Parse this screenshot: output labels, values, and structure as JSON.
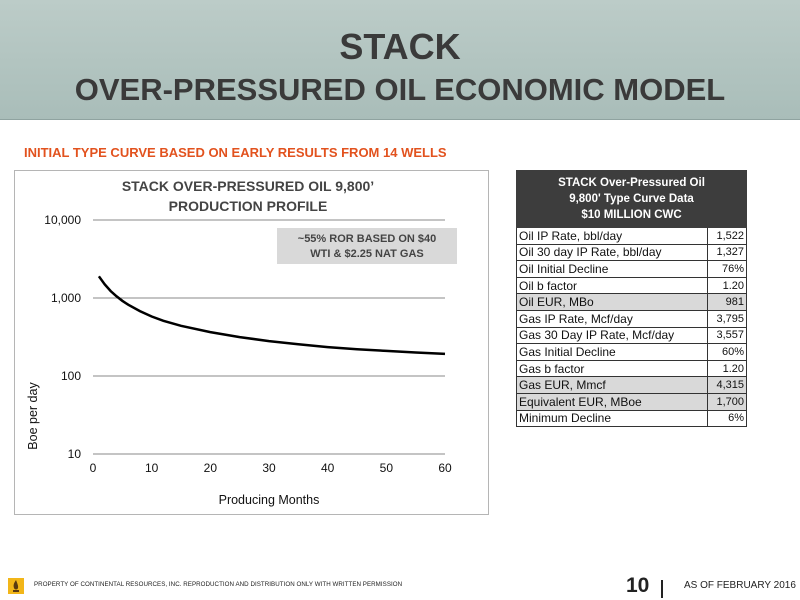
{
  "header": {
    "title_line1": "STACK",
    "title_line2": "OVER-PRESSURED OIL ECONOMIC MODEL"
  },
  "subtitle": "INITIAL TYPE CURVE BASED ON EARLY RESULTS FROM 14 WELLS",
  "chart_data": {
    "type": "line",
    "title_line1": "STACK OVER-PRESSURED OIL 9,800’",
    "title_line2": "PRODUCTION PROFILE",
    "annotation_line1": "~55% ROR BASED ON $40",
    "annotation_line2": "WTI & $2.25 NAT GAS",
    "xlabel": "Producing Months",
    "ylabel": "Boe per day",
    "xlim": [
      0,
      60
    ],
    "ylim": [
      10,
      10000
    ],
    "y_scale": "log",
    "x_ticks": [
      "0",
      "10",
      "20",
      "30",
      "40",
      "50",
      "60"
    ],
    "y_ticks": [
      "10,000",
      "1,000",
      "100",
      "10"
    ],
    "grid": "horizontal",
    "line_color": "#000000",
    "series": [
      {
        "x": [
          1,
          2,
          3,
          4,
          5,
          6,
          8,
          10,
          12,
          15,
          20,
          25,
          30,
          35,
          40,
          45,
          50,
          55,
          60
        ],
        "y": [
          1900,
          1500,
          1230,
          1050,
          920,
          820,
          680,
          580,
          510,
          440,
          365,
          315,
          280,
          255,
          235,
          220,
          210,
          200,
          192
        ]
      }
    ]
  },
  "table": {
    "header_line1": "STACK Over-Pressured Oil",
    "header_line2": "9,800' Type Curve Data",
    "header_line3": "$10 MILLION CWC",
    "rows": [
      {
        "label": "Oil IP Rate, bbl/day",
        "value": "1,522"
      },
      {
        "label": "Oil 30 day IP Rate, bbl/day",
        "value": "1,327"
      },
      {
        "label": "Oil Initial Decline",
        "value": "76%"
      },
      {
        "label": "Oil b factor",
        "value": "1.20"
      },
      {
        "label": "Oil EUR, MBo",
        "value": "981"
      },
      {
        "label": "Gas IP Rate, Mcf/day",
        "value": "3,795"
      },
      {
        "label": "Gas 30 Day IP Rate, Mcf/day",
        "value": "3,557"
      },
      {
        "label": "Gas Initial Decline",
        "value": "60%"
      },
      {
        "label": "Gas b factor",
        "value": "1.20"
      },
      {
        "label": "Gas EUR, Mmcf",
        "value": "4,315"
      },
      {
        "label": "Equivalent EUR, MBoe",
        "value": "1,700"
      },
      {
        "label": "Minimum Decline",
        "value": "6%"
      }
    ]
  },
  "footer": {
    "disclaimer": "PROPERTY OF CONTINENTAL RESOURCES, INC. REPRODUCTION AND DISTRIBUTION ONLY WITH WRITTEN PERMISSION",
    "page_number": "10",
    "as_of": "AS OF FEBRUARY 2016",
    "logo_icon": "continental-resources-logo-icon",
    "accent_color": "#e2521e"
  }
}
